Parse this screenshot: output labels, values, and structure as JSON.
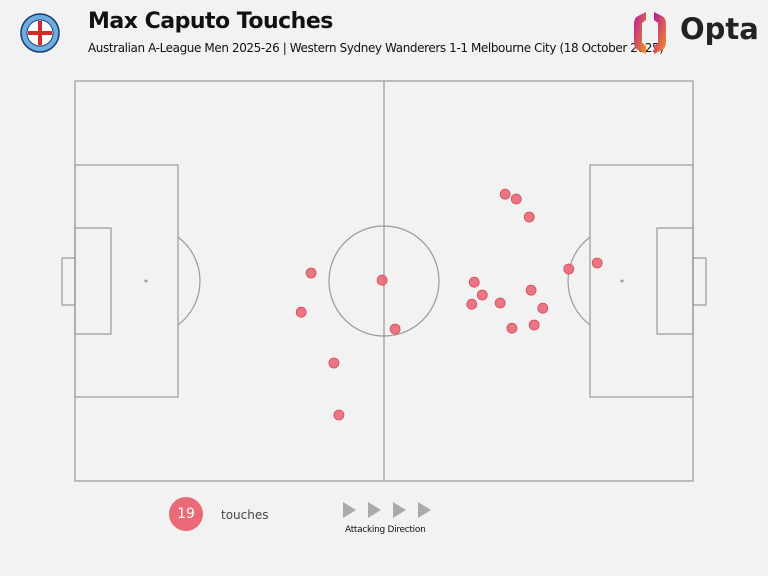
{
  "header": {
    "title": "Max Caputo Touches",
    "subtitle": "Australian A-League Men 2025-26 | Western Sydney Wanderers 1-1 Melbourne City (18 October 2025)",
    "team_badge_icon": "melbourne-city-badge",
    "brand_logo_text": "Opta"
  },
  "legend": {
    "count": "19",
    "count_label": "touches",
    "direction_label": "Attacking Direction",
    "marker_color": "#e8606e"
  },
  "chart_data": {
    "type": "scatter",
    "title": "Max Caputo Touches",
    "xlim": [
      0,
      100
    ],
    "ylim": [
      0,
      100
    ],
    "grid": false,
    "attacking_direction": "left-to-right",
    "points": [
      {
        "x": 38.2,
        "y": 48.0
      },
      {
        "x": 36.6,
        "y": 57.8
      },
      {
        "x": 49.7,
        "y": 49.8
      },
      {
        "x": 51.8,
        "y": 62.0
      },
      {
        "x": 41.9,
        "y": 70.5
      },
      {
        "x": 42.7,
        "y": 83.5
      },
      {
        "x": 69.6,
        "y": 28.3
      },
      {
        "x": 71.4,
        "y": 29.5
      },
      {
        "x": 73.5,
        "y": 34.0
      },
      {
        "x": 64.6,
        "y": 50.3
      },
      {
        "x": 65.9,
        "y": 53.5
      },
      {
        "x": 64.2,
        "y": 55.8
      },
      {
        "x": 68.8,
        "y": 55.5
      },
      {
        "x": 73.8,
        "y": 52.3
      },
      {
        "x": 75.7,
        "y": 56.8
      },
      {
        "x": 70.7,
        "y": 61.8
      },
      {
        "x": 74.3,
        "y": 61.0
      },
      {
        "x": 79.9,
        "y": 47.0
      },
      {
        "x": 84.5,
        "y": 45.5
      }
    ]
  }
}
